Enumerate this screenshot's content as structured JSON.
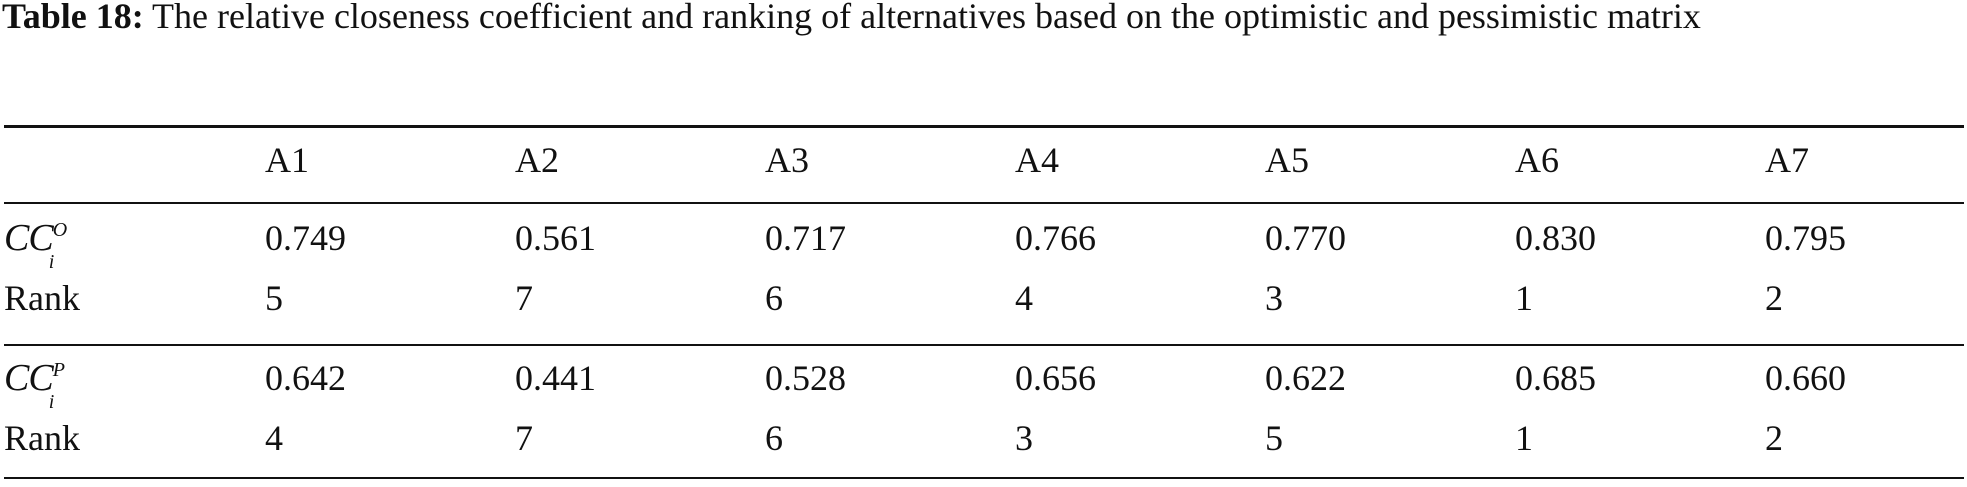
{
  "caption": {
    "label": "Table 18:",
    "text": " The relative closeness coefficient and ranking of alternatives based on the optimistic and pessimistic matrix"
  },
  "table": {
    "columns": [
      "",
      "A1",
      "A2",
      "A3",
      "A4",
      "A5",
      "A6",
      "A7"
    ],
    "groups": [
      {
        "measure": {
          "base": "CC",
          "superscript": "O",
          "subscript": "i"
        },
        "values": [
          "0.749",
          "0.561",
          "0.717",
          "0.766",
          "0.770",
          "0.830",
          "0.795"
        ],
        "rank_label": "Rank",
        "ranks": [
          "5",
          "7",
          "6",
          "4",
          "3",
          "1",
          "2"
        ]
      },
      {
        "measure": {
          "base": "CC",
          "superscript": "P",
          "subscript": "i"
        },
        "values": [
          "0.642",
          "0.441",
          "0.528",
          "0.656",
          "0.622",
          "0.685",
          "0.660"
        ],
        "rank_label": "Rank",
        "ranks": [
          "4",
          "7",
          "6",
          "3",
          "5",
          "1",
          "2"
        ]
      }
    ]
  }
}
